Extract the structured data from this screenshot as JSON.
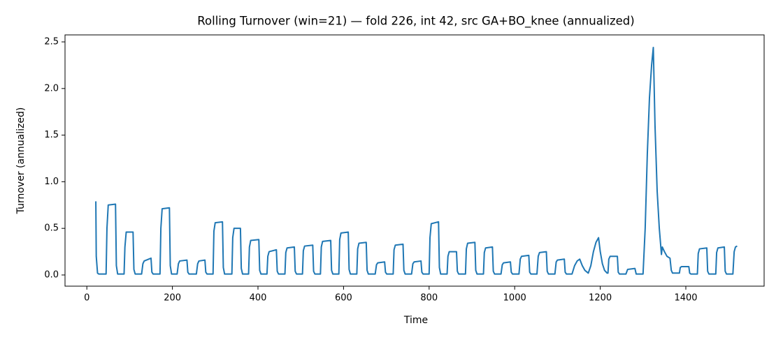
{
  "chart_data": {
    "type": "line",
    "title": "Rolling Turnover (win=21) — fold 226, int 42, src GA+BO_knee (annualized)",
    "x_label": "Time",
    "y_label": "Turnover (annualized)",
    "color": "#1f77b4",
    "xlim": [
      -51,
      1583
    ],
    "ylim": [
      -0.12,
      2.575
    ],
    "xticks": [
      0,
      200,
      400,
      600,
      800,
      1000,
      1200,
      1400
    ],
    "yticks": [
      {
        "value": 0,
        "label": "0.0"
      },
      {
        "value": 0.5,
        "label": "0.5"
      },
      {
        "value": 1,
        "label": "1.0"
      },
      {
        "value": 1.5,
        "label": "1.5"
      },
      {
        "value": 2,
        "label": "2.0"
      },
      {
        "value": 2.5,
        "label": "2.5"
      }
    ],
    "x": [
      21,
      22,
      25,
      28,
      45,
      47,
      50,
      67,
      69,
      72,
      87,
      89,
      92,
      108,
      110,
      113,
      128,
      131,
      134,
      150,
      152,
      155,
      171,
      173,
      176,
      193,
      195,
      198,
      211,
      214,
      217,
      234,
      236,
      239,
      256,
      259,
      262,
      276,
      278,
      281,
      295,
      297,
      300,
      317,
      319,
      322,
      339,
      341,
      344,
      359,
      361,
      364,
      378,
      380,
      383,
      402,
      404,
      407,
      421,
      423,
      426,
      443,
      445,
      448,
      463,
      465,
      468,
      485,
      487,
      490,
      504,
      506,
      509,
      528,
      530,
      533,
      546,
      548,
      551,
      570,
      572,
      575,
      589,
      591,
      594,
      611,
      613,
      616,
      631,
      633,
      636,
      653,
      655,
      658,
      674,
      677,
      680,
      696,
      698,
      701,
      716,
      718,
      721,
      739,
      741,
      744,
      759,
      762,
      765,
      781,
      783,
      786,
      800,
      802,
      805,
      822,
      824,
      827,
      842,
      844,
      847,
      864,
      866,
      869,
      885,
      887,
      890,
      907,
      909,
      912,
      927,
      929,
      932,
      948,
      950,
      953,
      968,
      971,
      974,
      990,
      992,
      995,
      1010,
      1013,
      1016,
      1033,
      1035,
      1038,
      1052,
      1055,
      1058,
      1074,
      1076,
      1079,
      1094,
      1097,
      1100,
      1116,
      1118,
      1121,
      1134,
      1140,
      1146,
      1152,
      1158,
      1164,
      1172,
      1178,
      1184,
      1190,
      1196,
      1200,
      1205,
      1210,
      1216,
      1218,
      1220,
      1223,
      1240,
      1242,
      1245,
      1260,
      1264,
      1281,
      1284,
      1300,
      1305,
      1310,
      1315,
      1320,
      1324,
      1328,
      1333,
      1338,
      1343,
      1345,
      1350,
      1356,
      1363,
      1366,
      1369,
      1385,
      1387,
      1390,
      1407,
      1409,
      1412,
      1427,
      1429,
      1432,
      1449,
      1451,
      1454,
      1470,
      1472,
      1475,
      1490,
      1492,
      1495,
      1510,
      1513,
      1516,
      1520
    ],
    "values": [
      0.79,
      0.2,
      0.02,
      0.01,
      0.01,
      0.5,
      0.75,
      0.76,
      0.1,
      0.01,
      0.01,
      0.3,
      0.46,
      0.46,
      0.06,
      0.01,
      0.01,
      0.12,
      0.15,
      0.18,
      0.03,
      0.01,
      0.01,
      0.5,
      0.71,
      0.72,
      0.1,
      0.01,
      0.01,
      0.12,
      0.15,
      0.16,
      0.03,
      0.01,
      0.01,
      0.12,
      0.15,
      0.16,
      0.03,
      0.01,
      0.01,
      0.47,
      0.56,
      0.57,
      0.08,
      0.01,
      0.01,
      0.4,
      0.5,
      0.5,
      0.07,
      0.01,
      0.01,
      0.3,
      0.37,
      0.38,
      0.05,
      0.01,
      0.01,
      0.2,
      0.25,
      0.27,
      0.04,
      0.01,
      0.01,
      0.24,
      0.29,
      0.3,
      0.04,
      0.01,
      0.01,
      0.26,
      0.31,
      0.32,
      0.04,
      0.01,
      0.01,
      0.3,
      0.36,
      0.37,
      0.05,
      0.01,
      0.01,
      0.38,
      0.45,
      0.46,
      0.06,
      0.01,
      0.01,
      0.28,
      0.34,
      0.35,
      0.05,
      0.01,
      0.01,
      0.11,
      0.13,
      0.14,
      0.03,
      0.01,
      0.01,
      0.27,
      0.32,
      0.33,
      0.05,
      0.01,
      0.01,
      0.12,
      0.14,
      0.15,
      0.03,
      0.01,
      0.01,
      0.4,
      0.55,
      0.57,
      0.08,
      0.01,
      0.01,
      0.2,
      0.25,
      0.25,
      0.04,
      0.01,
      0.01,
      0.28,
      0.34,
      0.35,
      0.05,
      0.01,
      0.01,
      0.24,
      0.29,
      0.3,
      0.04,
      0.01,
      0.01,
      0.11,
      0.13,
      0.14,
      0.03,
      0.01,
      0.01,
      0.17,
      0.2,
      0.21,
      0.03,
      0.01,
      0.01,
      0.2,
      0.24,
      0.25,
      0.04,
      0.01,
      0.01,
      0.14,
      0.16,
      0.17,
      0.03,
      0.01,
      0.01,
      0.1,
      0.15,
      0.17,
      0.1,
      0.05,
      0.02,
      0.1,
      0.25,
      0.35,
      0.4,
      0.25,
      0.12,
      0.05,
      0.02,
      0.02,
      0.17,
      0.2,
      0.2,
      0.03,
      0.01,
      0.01,
      0.06,
      0.07,
      0.01,
      0.01,
      0.5,
      1.3,
      1.9,
      2.25,
      2.44,
      1.6,
      0.9,
      0.5,
      0.22,
      0.3,
      0.25,
      0.2,
      0.18,
      0.05,
      0.02,
      0.02,
      0.08,
      0.09,
      0.09,
      0.02,
      0.01,
      0.01,
      0.23,
      0.28,
      0.29,
      0.04,
      0.01,
      0.01,
      0.24,
      0.29,
      0.3,
      0.04,
      0.01,
      0.01,
      0.25,
      0.3,
      0.31
    ]
  }
}
